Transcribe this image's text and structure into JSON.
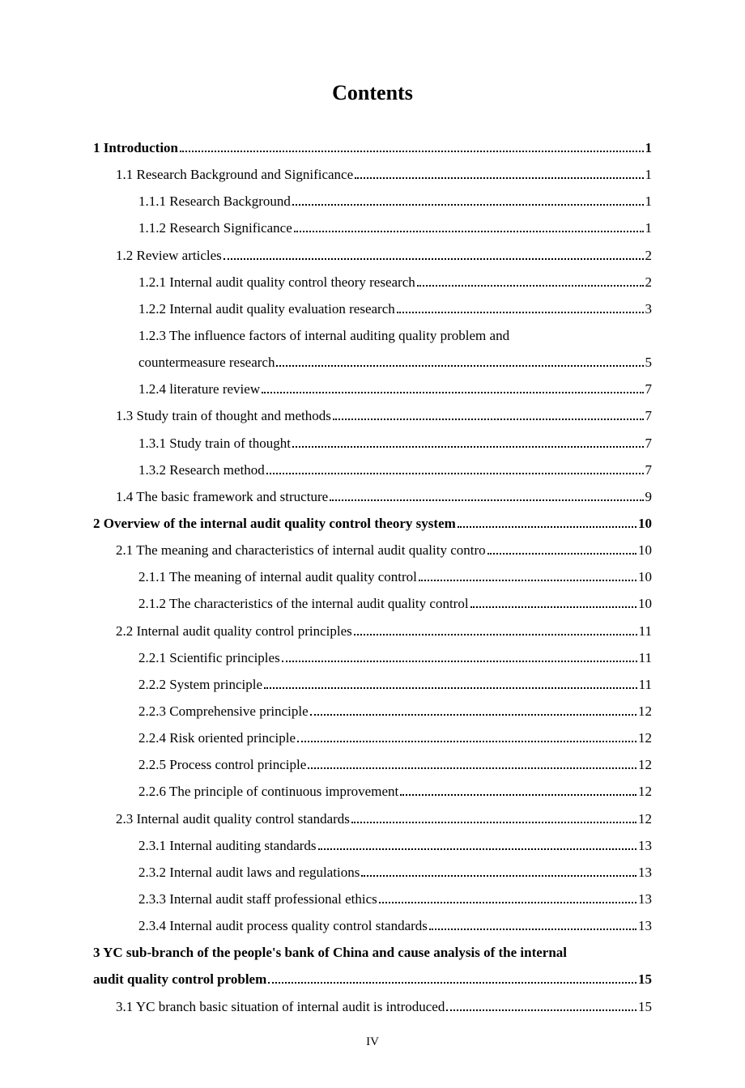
{
  "title": "Contents",
  "footer": "IV",
  "entries": [
    {
      "indent": 0,
      "bold": true,
      "label": "1 Introduction",
      "page": "1"
    },
    {
      "indent": 1,
      "bold": false,
      "label": "1.1 Research Background and Significance",
      "page": "1"
    },
    {
      "indent": 2,
      "bold": false,
      "label": "1.1.1 Research Background",
      "page": "1"
    },
    {
      "indent": 2,
      "bold": false,
      "label": "1.1.2 Research Significance",
      "page": "1"
    },
    {
      "indent": 1,
      "bold": false,
      "label": "1.2 Review articles",
      "page": "2"
    },
    {
      "indent": 2,
      "bold": false,
      "label": "1.2.1 Internal audit quality control theory research",
      "page": "2"
    },
    {
      "indent": 2,
      "bold": false,
      "label": "1.2.2 Internal audit quality evaluation research",
      "page": "3"
    },
    {
      "indent": 2,
      "bold": false,
      "label": "1.2.3 The influence factors of internal auditing quality problem and",
      "page": null,
      "continuation": true
    },
    {
      "indent": 2,
      "bold": false,
      "label": "countermeasure research",
      "page": "5"
    },
    {
      "indent": 2,
      "bold": false,
      "label": "1.2.4 literature review",
      "page": "7"
    },
    {
      "indent": 1,
      "bold": false,
      "label": "1.3 Study train of thought and methods",
      "page": "7"
    },
    {
      "indent": 2,
      "bold": false,
      "label": "1.3.1 Study train of thought",
      "page": "7"
    },
    {
      "indent": 2,
      "bold": false,
      "label": "1.3.2 Research method",
      "page": "7"
    },
    {
      "indent": 1,
      "bold": false,
      "label": "1.4 The basic framework and structure",
      "page": "9"
    },
    {
      "indent": 0,
      "bold": true,
      "label": "2 Overview of the internal audit quality control theory system",
      "page": "10"
    },
    {
      "indent": 1,
      "bold": false,
      "label": "2.1 The meaning and characteristics of internal audit quality contro",
      "page": "10"
    },
    {
      "indent": 2,
      "bold": false,
      "label": "2.1.1 The meaning of internal audit quality control",
      "page": "10"
    },
    {
      "indent": 2,
      "bold": false,
      "label": "2.1.2 The characteristics of the internal audit quality control",
      "page": "10"
    },
    {
      "indent": 1,
      "bold": false,
      "label": "2.2 Internal audit quality control principles",
      "page": "11"
    },
    {
      "indent": 2,
      "bold": false,
      "label": "2.2.1 Scientific principles",
      "page": "11"
    },
    {
      "indent": 2,
      "bold": false,
      "label": "2.2.2 System principle",
      "page": "11"
    },
    {
      "indent": 2,
      "bold": false,
      "label": "2.2.3 Comprehensive principle",
      "page": "12"
    },
    {
      "indent": 2,
      "bold": false,
      "label": "2.2.4 Risk oriented principle",
      "page": "12"
    },
    {
      "indent": 2,
      "bold": false,
      "label": "2.2.5 Process control principle",
      "page": "12"
    },
    {
      "indent": 2,
      "bold": false,
      "label": "2.2.6 The principle of continuous improvement",
      "page": "12"
    },
    {
      "indent": 1,
      "bold": false,
      "label": "2.3 Internal audit quality control standards",
      "page": "12"
    },
    {
      "indent": 2,
      "bold": false,
      "label": "2.3.1 Internal auditing standards",
      "page": "13"
    },
    {
      "indent": 2,
      "bold": false,
      "label": "2.3.2 Internal audit laws and regulations",
      "page": "13"
    },
    {
      "indent": 2,
      "bold": false,
      "label": "2.3.3 Internal audit staff professional ethics",
      "page": "13"
    },
    {
      "indent": 2,
      "bold": false,
      "label": "2.3.4 Internal audit process quality control standards",
      "page": "13"
    },
    {
      "indent": 0,
      "bold": true,
      "label": "3 YC sub-branch of the people's bank of China and cause analysis of the internal",
      "page": null,
      "continuation": true
    },
    {
      "indent": 0,
      "bold": true,
      "label": "audit quality control problem",
      "page": "15"
    },
    {
      "indent": 1,
      "bold": false,
      "label": "3.1 YC branch basic situation of internal audit is introduced",
      "page": "15"
    }
  ]
}
